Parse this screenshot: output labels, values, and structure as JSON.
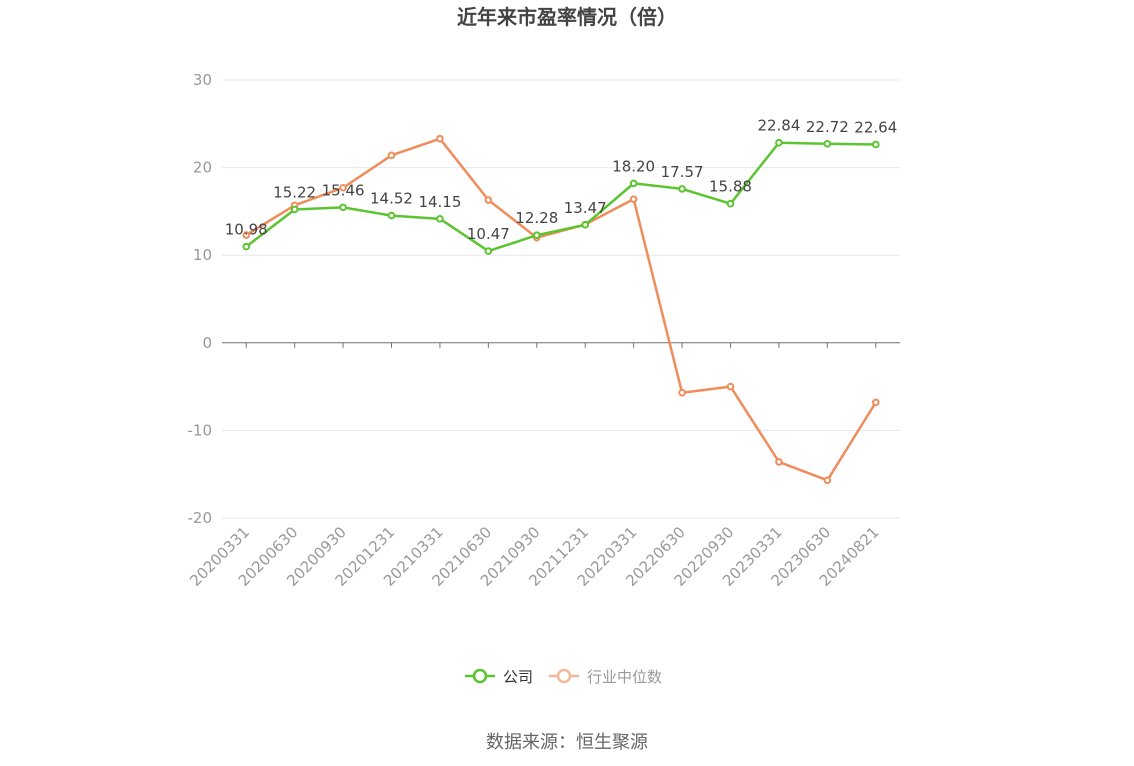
{
  "chart_data": {
    "type": "line",
    "title": "近年来市盈率情况（倍）",
    "source": "数据来源：恒生聚源",
    "x": [
      "20200331",
      "20200630",
      "20200930",
      "20201231",
      "20210331",
      "20210630",
      "20210930",
      "20211231",
      "20220331",
      "20220630",
      "20220930",
      "20230331",
      "20230630",
      "20240821"
    ],
    "ylim": [
      -20,
      30
    ],
    "yticks": [
      -20,
      -10,
      0,
      10,
      20,
      30
    ],
    "grid": true,
    "legend_position": "bottom-center",
    "series": [
      {
        "name": "公司",
        "color": "#5ac52f",
        "values": [
          10.98,
          15.22,
          15.46,
          14.52,
          14.15,
          10.47,
          12.28,
          13.47,
          18.2,
          17.57,
          15.88,
          22.84,
          22.72,
          22.64
        ],
        "labels": [
          "10.98",
          "15.22",
          "15.46",
          "14.52",
          "14.15",
          "10.47",
          "12.28",
          "13.47",
          "18.20",
          "17.57",
          "15.88",
          "22.84",
          "22.72",
          "22.64"
        ]
      },
      {
        "name": "行业中位数",
        "color": "#f08c5a",
        "values": [
          12.3,
          15.7,
          17.7,
          21.4,
          23.3,
          16.3,
          12.0,
          13.5,
          16.4,
          -5.7,
          -5.0,
          -13.6,
          -15.7,
          -6.8
        ]
      }
    ]
  }
}
